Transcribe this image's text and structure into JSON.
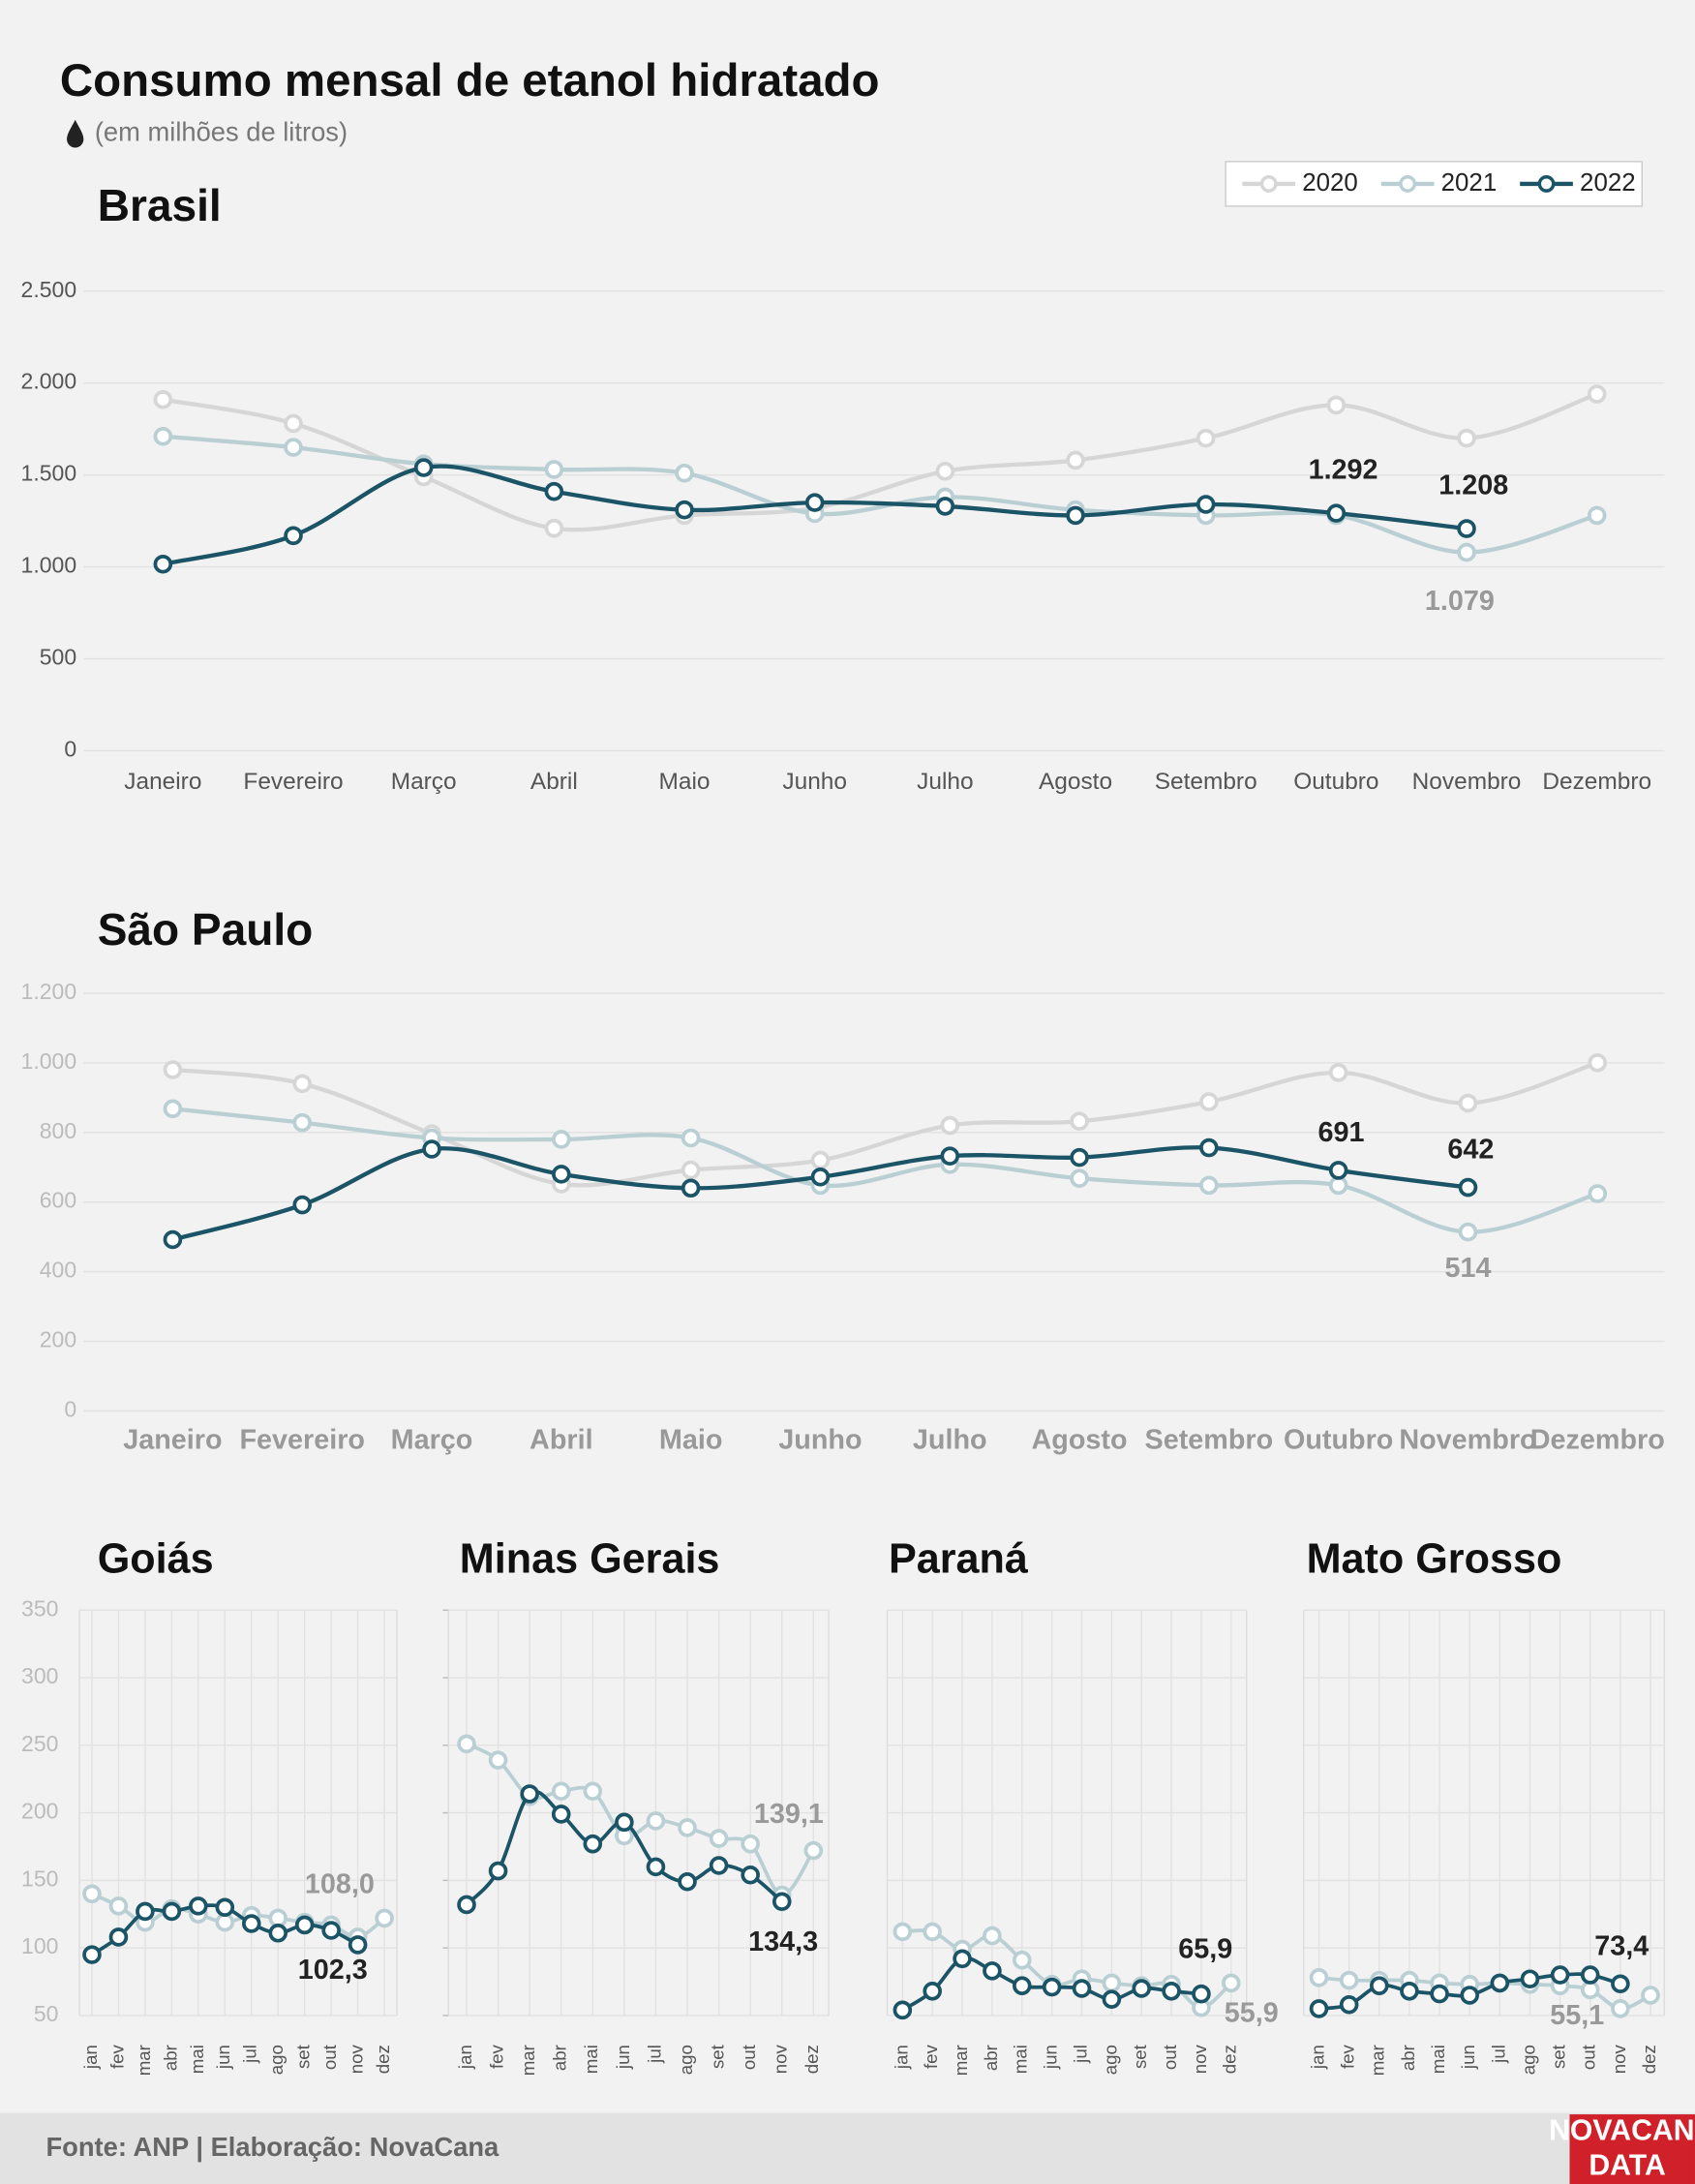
{
  "title": "Consumo mensal de etanol hidratado",
  "subtitle": "(em milhões de litros)",
  "source": "Fonte: ANP | Elaboração: NovaCana",
  "logo": [
    "NOVACANA",
    "DATA"
  ],
  "chart_data": [
    {
      "type": "line",
      "title": "Brasil",
      "legend": "top-right",
      "grid": true,
      "categories": [
        "Janeiro",
        "Fevereiro",
        "Março",
        "Abril",
        "Maio",
        "Junho",
        "Julho",
        "Agosto",
        "Setembro",
        "Outubro",
        "Novembro",
        "Dezembro"
      ],
      "ylim": [
        0,
        2500
      ],
      "yticks": [
        0,
        500,
        {
          "value": 1000,
          "label": "1.000"
        },
        {
          "value": 1500,
          "label": "1.500"
        },
        {
          "value": 2000,
          "label": "2.000"
        },
        {
          "value": 2500,
          "label": "2.500"
        }
      ],
      "series": [
        {
          "name": "2020",
          "color": "#d6d6d6",
          "values": [
            1910,
            1780,
            1490,
            1210,
            1280,
            1320,
            1520,
            1580,
            1700,
            1880,
            1700,
            1940
          ]
        },
        {
          "name": "2021",
          "color": "#b9cfd3",
          "values": [
            1710,
            1650,
            1560,
            1530,
            1510,
            1290,
            1380,
            1310,
            1280,
            1280,
            1079,
            1280
          ],
          "value_labels": [
            null,
            null,
            null,
            null,
            null,
            null,
            null,
            null,
            null,
            null,
            "1.079",
            null
          ]
        },
        {
          "name": "2022",
          "color": "#1b5466",
          "values": [
            1015,
            1170,
            1540,
            1410,
            1310,
            1350,
            1330,
            1280,
            1340,
            1292,
            1208,
            null
          ],
          "value_labels": [
            null,
            null,
            null,
            null,
            null,
            null,
            null,
            null,
            null,
            "1.292",
            "1.208",
            null
          ]
        }
      ]
    },
    {
      "type": "line",
      "title": "São Paulo",
      "grid": true,
      "categories": [
        "Janeiro",
        "Fevereiro",
        "Março",
        "Abril",
        "Maio",
        "Junho",
        "Julho",
        "Agosto",
        "Setembro",
        "Outubro",
        "Novembro",
        "Dezembro"
      ],
      "ylim": [
        0,
        1200
      ],
      "yticks": [
        0,
        200,
        400,
        600,
        800,
        {
          "value": 1000,
          "label": "1.000"
        },
        {
          "value": 1200,
          "label": "1.200"
        }
      ],
      "series": [
        {
          "name": "2020",
          "color": "#d6d6d6",
          "values": [
            980,
            940,
            796,
            652,
            692,
            720,
            820,
            832,
            888,
            972,
            884,
            1000
          ]
        },
        {
          "name": "2021",
          "color": "#b9cfd3",
          "values": [
            868,
            828,
            784,
            780,
            784,
            648,
            708,
            668,
            648,
            648,
            514,
            624
          ],
          "value_labels": [
            null,
            null,
            null,
            null,
            null,
            null,
            null,
            null,
            null,
            null,
            "514",
            null
          ]
        },
        {
          "type": "line",
          "name": "2022",
          "color": "#1b5466",
          "values": [
            492,
            592,
            752,
            680,
            640,
            672,
            732,
            728,
            756,
            691,
            642,
            null
          ],
          "value_labels": [
            null,
            null,
            null,
            null,
            null,
            null,
            null,
            null,
            null,
            "691",
            "642",
            null
          ]
        }
      ]
    },
    {
      "type": "line",
      "title": "Goiás",
      "grid": true,
      "categories": [
        "jan",
        "fev",
        "mar",
        "abr",
        "mai",
        "jun",
        "jul",
        "ago",
        "set",
        "out",
        "nov",
        "dez"
      ],
      "ylim": [
        50,
        350
      ],
      "yticks": [
        50,
        100,
        150,
        200,
        250,
        300,
        350
      ],
      "series": [
        {
          "name": "2021",
          "color": "#b9cfd3",
          "values": [
            140,
            131,
            119,
            129,
            125,
            119,
            124,
            122,
            119,
            117,
            108.0,
            122
          ],
          "value_labels": [
            null,
            null,
            null,
            null,
            null,
            null,
            null,
            null,
            null,
            null,
            "108,0",
            null
          ]
        },
        {
          "name": "2022",
          "color": "#1b5466",
          "values": [
            95,
            108,
            127,
            127,
            131,
            130,
            118,
            111,
            117,
            113,
            102.3,
            null
          ],
          "value_labels": [
            null,
            null,
            null,
            null,
            null,
            null,
            null,
            null,
            null,
            null,
            "102,3",
            null
          ]
        }
      ]
    },
    {
      "type": "line",
      "title": "Minas Gerais",
      "grid": true,
      "categories": [
        "jan",
        "fev",
        "mar",
        "abr",
        "mai",
        "jun",
        "jul",
        "ago",
        "set",
        "out",
        "nov",
        "dez"
      ],
      "ylim": [
        50,
        350
      ],
      "yticks": [
        50,
        100,
        150,
        200,
        250,
        300,
        350
      ],
      "series": [
        {
          "name": "2021",
          "color": "#b9cfd3",
          "values": [
            251,
            239,
            212,
            216,
            216,
            183,
            194,
            189,
            181,
            177,
            139.1,
            172
          ],
          "value_labels": [
            null,
            null,
            null,
            null,
            null,
            null,
            null,
            null,
            null,
            null,
            "139,1",
            null
          ]
        },
        {
          "name": "2022",
          "color": "#1b5466",
          "values": [
            132,
            157,
            214,
            199,
            177,
            193,
            160,
            149,
            161,
            154,
            134.3,
            null
          ],
          "value_labels": [
            null,
            null,
            null,
            null,
            null,
            null,
            null,
            null,
            null,
            null,
            "134,3",
            null
          ]
        }
      ]
    },
    {
      "type": "line",
      "title": "Paraná",
      "grid": true,
      "categories": [
        "jan",
        "fev",
        "mar",
        "abr",
        "mai",
        "jun",
        "jul",
        "ago",
        "set",
        "out",
        "nov",
        "dez"
      ],
      "ylim": [
        50,
        350
      ],
      "yticks": [
        50,
        100,
        150,
        200,
        250,
        300,
        350
      ],
      "series": [
        {
          "name": "2021",
          "color": "#b9cfd3",
          "values": [
            112,
            112,
            99,
            109,
            91,
            73,
            77,
            74,
            72,
            73,
            55.9,
            74
          ],
          "value_labels": [
            null,
            null,
            null,
            null,
            null,
            null,
            null,
            null,
            null,
            null,
            "55,9",
            null
          ]
        },
        {
          "name": "2022",
          "color": "#1b5466",
          "values": [
            54,
            68,
            92,
            83,
            72,
            71,
            70,
            62,
            70,
            68,
            65.9,
            null
          ],
          "value_labels": [
            null,
            null,
            null,
            null,
            null,
            null,
            null,
            null,
            null,
            null,
            "65,9",
            null
          ]
        }
      ]
    },
    {
      "type": "line",
      "title": "Mato Grosso",
      "grid": true,
      "categories": [
        "jan",
        "fev",
        "mar",
        "abr",
        "mai",
        "jun",
        "jul",
        "ago",
        "set",
        "out",
        "nov",
        "dez"
      ],
      "ylim": [
        50,
        350
      ],
      "yticks": [
        50,
        100,
        150,
        200,
        250,
        300,
        350
      ],
      "series": [
        {
          "name": "2021",
          "color": "#b9cfd3",
          "values": [
            78,
            76,
            76,
            76,
            74,
            73,
            74,
            73,
            72,
            69,
            55.1,
            65
          ],
          "value_labels": [
            null,
            null,
            null,
            null,
            null,
            null,
            null,
            null,
            null,
            null,
            "55,1",
            null
          ]
        },
        {
          "name": "2022",
          "color": "#1b5466",
          "values": [
            55,
            58,
            72,
            68,
            66,
            65,
            74,
            77,
            80,
            80,
            73.4,
            null
          ],
          "value_labels": [
            null,
            null,
            null,
            null,
            null,
            null,
            null,
            null,
            null,
            null,
            "73,4",
            null
          ]
        }
      ]
    }
  ]
}
